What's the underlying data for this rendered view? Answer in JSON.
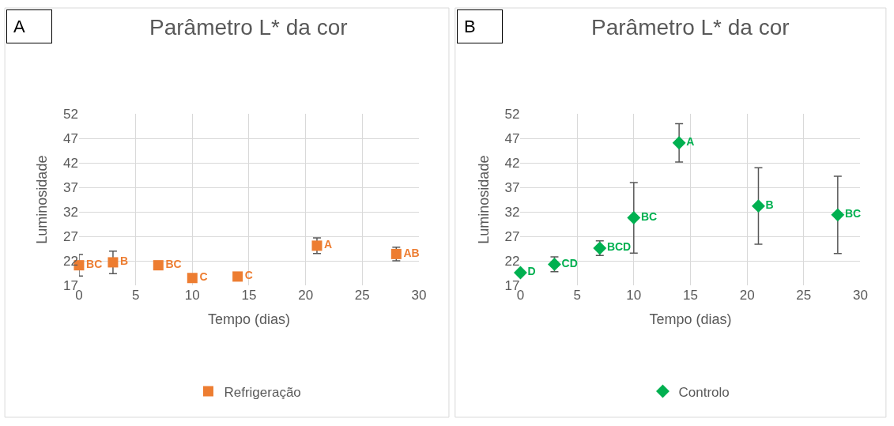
{
  "chart_data": [
    {
      "type": "scatter",
      "title": "Parâmetro L* da cor",
      "xlabel": "Tempo (dias)",
      "ylabel": "Luminosidade",
      "annotations": [
        "A"
      ],
      "x": [
        0,
        3,
        7,
        10,
        14,
        21,
        28
      ],
      "series": [
        {
          "name": "Refrigeração",
          "color": "#ed7d31",
          "values": [
            21.1,
            21.7,
            21.1,
            18.5,
            18.8,
            25.1,
            23.4
          ],
          "errors": [
            2.2,
            2.3,
            null,
            null,
            null,
            1.6,
            1.4
          ],
          "value_labels": [
            "BC",
            "B",
            "BC",
            "C",
            "C",
            "A",
            "AB"
          ]
        }
      ],
      "xlim": [
        0,
        30
      ],
      "xticks": [
        0,
        5,
        10,
        15,
        20,
        25,
        30
      ],
      "ylim": [
        17,
        52
      ],
      "yticks": [
        17,
        22,
        27,
        32,
        37,
        42,
        47,
        52
      ],
      "grid": true,
      "legend": "bottom",
      "marker": "square"
    },
    {
      "type": "scatter",
      "title": "Parâmetro L* da cor",
      "xlabel": "Tempo (dias)",
      "ylabel": "Luminosidade",
      "annotations": [
        "B"
      ],
      "x": [
        0,
        3,
        7,
        10,
        14,
        21,
        28
      ],
      "series": [
        {
          "name": "Controlo",
          "color": "#00b050",
          "values": [
            19.6,
            21.3,
            24.6,
            30.8,
            46.1,
            33.2,
            31.4
          ],
          "errors": [
            null,
            1.5,
            1.5,
            7.2,
            3.9,
            7.8,
            7.9
          ],
          "value_labels": [
            "D",
            "CD",
            "BCD",
            "BC",
            "A",
            "B",
            "BC"
          ]
        }
      ],
      "xlim": [
        0,
        30
      ],
      "xticks": [
        0,
        5,
        10,
        15,
        20,
        25,
        30
      ],
      "ylim": [
        17,
        52
      ],
      "yticks": [
        17,
        22,
        27,
        32,
        37,
        42,
        47,
        52
      ],
      "grid": true,
      "legend": "bottom",
      "marker": "diamond"
    }
  ]
}
